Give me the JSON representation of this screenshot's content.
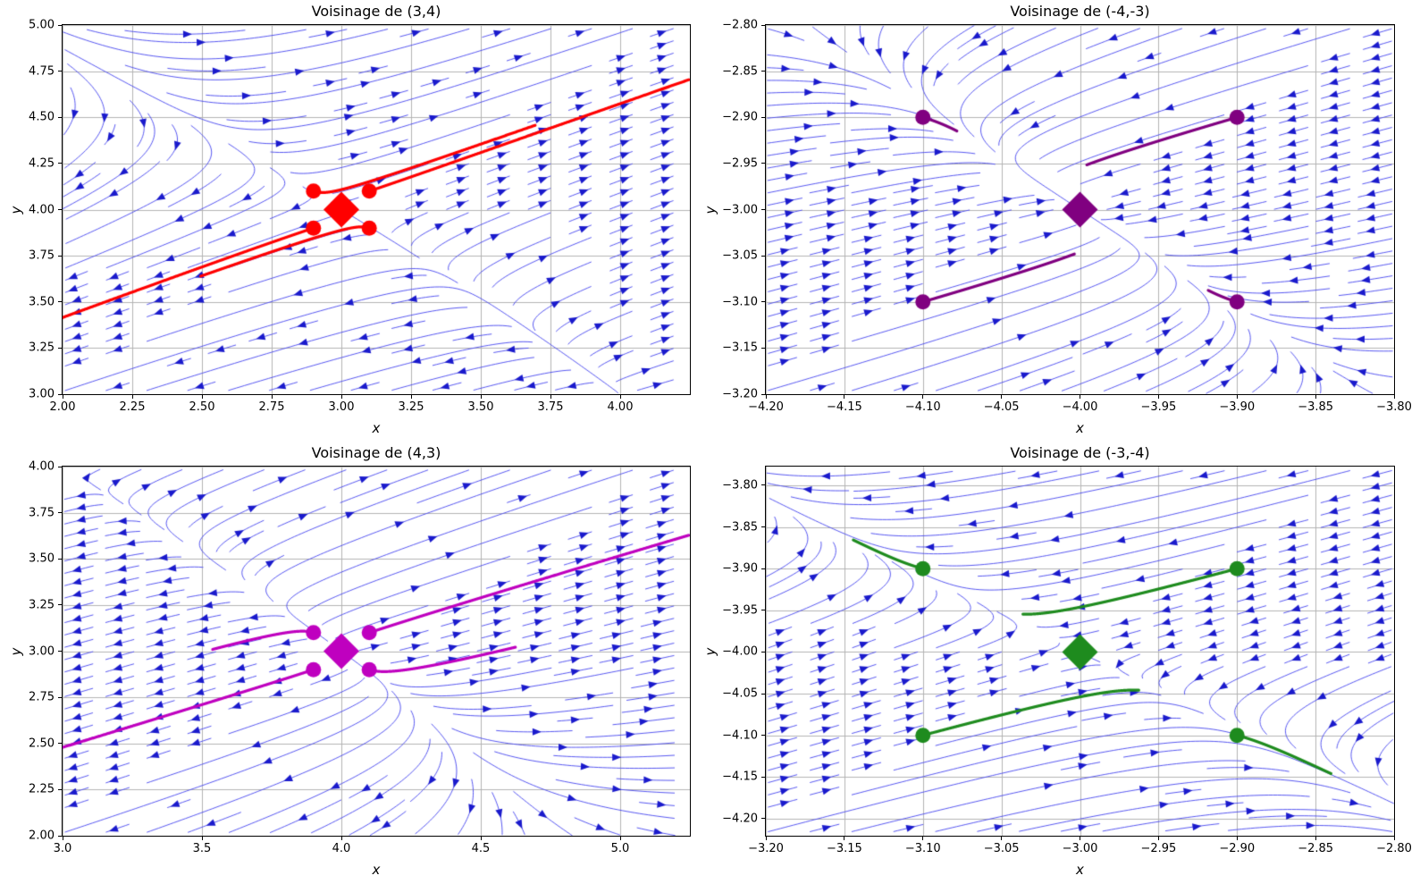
{
  "figure": {
    "background": "#ffffff"
  },
  "chart_data": {
    "type": "streamplot",
    "vector_field": {
      "dx": "x*x + y*y - 25",
      "dy": "x*y - 12"
    },
    "style": {
      "stream_color": "#4444ee",
      "arrow_color": "#1a1acc",
      "grid_color": "#b3b3b3",
      "spine_color": "#000000",
      "stream_linewidth": 0.9,
      "trajectory_linewidth": 3.2,
      "dot_radius": 8.5,
      "diamond_half_diagonal": 20
    },
    "panels": [
      {
        "title": "Voisinage de (3,4)",
        "xlabel": "x",
        "ylabel": "y",
        "xlim": [
          2.0,
          4.25
        ],
        "ylim": [
          3.0,
          5.0
        ],
        "xtick_values": [
          2.0,
          2.25,
          2.5,
          2.75,
          3.0,
          3.25,
          3.5,
          3.75,
          4.0
        ],
        "xtick_labels": [
          "2.00",
          "2.25",
          "2.50",
          "2.75",
          "3.00",
          "3.25",
          "3.50",
          "3.75",
          "4.00"
        ],
        "ytick_values": [
          3.0,
          3.25,
          3.5,
          3.75,
          4.0,
          4.25,
          4.5,
          4.75,
          5.0
        ],
        "ytick_labels": [
          "3.00",
          "3.25",
          "3.50",
          "3.75",
          "4.00",
          "4.25",
          "4.50",
          "4.75",
          "5.00"
        ],
        "stream_domain": {
          "x": [
            2.0,
            4.2
          ],
          "y": [
            3.0,
            5.0
          ]
        },
        "equilibrium": {
          "x": 3,
          "y": 4
        },
        "color": "#ff0000",
        "trajectory_starts": [
          [
            2.9,
            4.1
          ],
          [
            3.1,
            4.1
          ],
          [
            2.9,
            3.9
          ],
          [
            3.1,
            3.9
          ]
        ],
        "t_max": 0.46
      },
      {
        "title": "Voisinage de (-4,-3)",
        "xlabel": "x",
        "ylabel": "y",
        "xlim": [
          -4.2,
          -3.8
        ],
        "ylim": [
          -3.2,
          -2.8
        ],
        "xtick_values": [
          -4.2,
          -4.15,
          -4.1,
          -4.05,
          -4.0,
          -3.95,
          -3.9,
          -3.85,
          -3.8
        ],
        "xtick_labels": [
          "−4.20",
          "−4.15",
          "−4.10",
          "−4.05",
          "−4.00",
          "−3.95",
          "−3.90",
          "−3.85",
          "−3.80"
        ],
        "ytick_values": [
          -3.2,
          -3.15,
          -3.1,
          -3.05,
          -3.0,
          -2.95,
          -2.9,
          -2.85,
          -2.8
        ],
        "ytick_labels": [
          "−3.20",
          "−3.15",
          "−3.10",
          "−3.05",
          "−3.00",
          "−2.95",
          "−2.90",
          "−2.85",
          "−2.80"
        ],
        "stream_domain": {
          "x": [
            -4.2,
            -3.8
          ],
          "y": [
            -3.2,
            -2.8
          ]
        },
        "equilibrium": {
          "x": -4,
          "y": -3
        },
        "color": "#800080",
        "trajectory_starts": [
          [
            -4.1,
            -2.9
          ],
          [
            -3.9,
            -2.9
          ],
          [
            -4.1,
            -3.1
          ],
          [
            -3.9,
            -3.1
          ]
        ],
        "t_max": 0.13
      },
      {
        "title": "Voisinage de (4,3)",
        "xlabel": "x",
        "ylabel": "y",
        "xlim": [
          3.0,
          5.25
        ],
        "ylim": [
          2.0,
          4.0
        ],
        "xtick_values": [
          3.0,
          3.5,
          4.0,
          4.5,
          5.0
        ],
        "xtick_labels": [
          "3.0",
          "3.5",
          "4.0",
          "4.5",
          "5.0"
        ],
        "ytick_values": [
          2.0,
          2.25,
          2.5,
          2.75,
          3.0,
          3.25,
          3.5,
          3.75,
          4.0
        ],
        "ytick_labels": [
          "2.00",
          "2.25",
          "2.50",
          "2.75",
          "3.00",
          "3.25",
          "3.50",
          "3.75",
          "4.00"
        ],
        "stream_domain": {
          "x": [
            3.0,
            5.2
          ],
          "y": [
            2.0,
            4.0
          ]
        },
        "equilibrium": {
          "x": 4,
          "y": 3
        },
        "color": "#bf00bf",
        "trajectory_starts": [
          [
            3.9,
            3.1
          ],
          [
            4.1,
            3.1
          ],
          [
            3.9,
            2.9
          ],
          [
            4.1,
            2.9
          ]
        ],
        "t_max": 0.37
      },
      {
        "title": "Voisinage de (-3,-4)",
        "xlabel": "x",
        "ylabel": "y",
        "xlim": [
          -3.2,
          -2.8
        ],
        "ylim": [
          -4.2205,
          -3.7775
        ],
        "xtick_values": [
          -3.2,
          -3.15,
          -3.1,
          -3.05,
          -3.0,
          -2.95,
          -2.9,
          -2.85,
          -2.8
        ],
        "xtick_labels": [
          "−3.20",
          "−3.15",
          "−3.10",
          "−3.05",
          "−3.00",
          "−2.95",
          "−2.90",
          "−2.85",
          "−2.80"
        ],
        "ytick_values": [
          -3.8,
          -3.85,
          -3.9,
          -3.95,
          -4.0,
          -4.05,
          -4.1,
          -4.15,
          -4.2
        ],
        "ytick_labels": [
          "−3.80",
          "−3.85",
          "−3.90",
          "−3.95",
          "−4.00",
          "−4.05",
          "−4.10",
          "−4.15",
          "−4.20"
        ],
        "stream_domain": {
          "x": [
            -3.2,
            -2.8
          ],
          "y": [
            -4.2205,
            -3.7775
          ]
        },
        "equilibrium": {
          "x": -3,
          "y": -4
        },
        "color": "#1e8b1e",
        "trajectory_starts": [
          [
            -3.1,
            -3.9
          ],
          [
            -2.9,
            -3.9
          ],
          [
            -3.1,
            -4.1
          ],
          [
            -2.9,
            -4.1
          ]
        ],
        "t_max": 0.27
      }
    ]
  }
}
